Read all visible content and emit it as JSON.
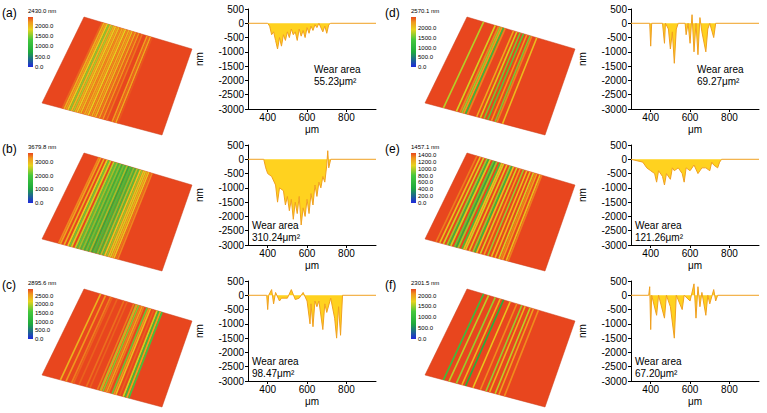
{
  "chart_data": [
    {
      "type": "line",
      "label": "(a)",
      "color": "#f0a020",
      "xlabel": "μm",
      "ylabel": "nm",
      "xlim": [
        300,
        950
      ],
      "xticks": [
        400,
        600,
        800
      ],
      "ylim": [
        -3000,
        500
      ],
      "yticks": [
        -3000,
        -2500,
        -2000,
        -1500,
        -1000,
        -500,
        0,
        500
      ],
      "grid": false,
      "annotations": [
        "Wear area",
        "55.23μm²"
      ],
      "colorbar": {
        "title": "2430.0 nm",
        "range": [
          0,
          2430
        ],
        "ticks": [
          {
            "value": 2000,
            "label": "2000.0"
          },
          {
            "value": 1500,
            "label": "1500.0"
          },
          {
            "value": 1000,
            "label": "1000.0"
          },
          {
            "value": 500,
            "label": "500.0"
          },
          {
            "value": 0,
            "label": "0.0"
          }
        ]
      },
      "x": [
        300,
        400,
        410,
        420,
        430,
        440,
        450,
        460,
        470,
        480,
        490,
        500,
        510,
        520,
        530,
        540,
        550,
        560,
        570,
        580,
        590,
        600,
        610,
        620,
        630,
        640,
        650,
        660,
        680,
        690,
        700,
        710,
        720,
        950
      ],
      "values": [
        0,
        0,
        -100,
        -400,
        -300,
        -600,
        -900,
        -500,
        -800,
        -400,
        -600,
        -300,
        -500,
        -200,
        -400,
        -300,
        -600,
        -200,
        -450,
        -250,
        -500,
        -150,
        -350,
        -100,
        -250,
        -50,
        -150,
        0,
        -300,
        -100,
        -350,
        -50,
        0,
        0
      ]
    },
    {
      "type": "line",
      "label": "(b)",
      "color": "#f0a020",
      "xlabel": "μm",
      "ylabel": "nm",
      "xlim": [
        300,
        950
      ],
      "xticks": [
        400,
        600,
        800
      ],
      "ylim": [
        -3000,
        500
      ],
      "yticks": [
        -3000,
        -2500,
        -2000,
        -1500,
        -1000,
        -500,
        0,
        500
      ],
      "grid": false,
      "annotations": [
        "Wear area",
        "310.24μm²"
      ],
      "colorbar": {
        "title": "3679.8 nm",
        "range": [
          0,
          3679.8
        ],
        "ticks": [
          {
            "value": 3000,
            "label": "3000.0"
          },
          {
            "value": 2000,
            "label": "2000.0"
          },
          {
            "value": 1000,
            "label": "1000.0"
          },
          {
            "value": 0,
            "label": "0.0"
          }
        ]
      },
      "x": [
        300,
        380,
        390,
        400,
        420,
        440,
        450,
        460,
        480,
        490,
        500,
        510,
        520,
        530,
        540,
        550,
        560,
        570,
        580,
        590,
        600,
        610,
        620,
        630,
        640,
        650,
        660,
        670,
        680,
        690,
        700,
        705,
        710,
        720,
        950
      ],
      "values": [
        0,
        0,
        -300,
        -500,
        -600,
        -900,
        -1500,
        -1000,
        -1100,
        -1600,
        -1300,
        -1800,
        -1400,
        -2100,
        -1500,
        -1900,
        -1300,
        -2300,
        -1700,
        -2000,
        -1400,
        -1900,
        -1200,
        -1600,
        -900,
        -1300,
        -800,
        -1000,
        -600,
        -800,
        -200,
        300,
        -300,
        0,
        0
      ]
    },
    {
      "type": "line",
      "label": "(c)",
      "color": "#f0a020",
      "xlabel": "μm",
      "ylabel": "nm",
      "xlim": [
        300,
        950
      ],
      "xticks": [
        400,
        600,
        800
      ],
      "ylim": [
        -3000,
        500
      ],
      "yticks": [
        -3000,
        -2500,
        -2000,
        -1500,
        -1000,
        -500,
        0,
        500
      ],
      "grid": false,
      "annotations": [
        "Wear area",
        "98.47μm²"
      ],
      "colorbar": {
        "title": "2895.6 nm",
        "range": [
          0,
          2895.6
        ],
        "ticks": [
          {
            "value": 2500,
            "label": "2500.0"
          },
          {
            "value": 2000,
            "label": "2000.0"
          },
          {
            "value": 1500,
            "label": "1500.0"
          },
          {
            "value": 1000,
            "label": "1000.0"
          },
          {
            "value": 500,
            "label": "500.0"
          },
          {
            "value": 0,
            "label": "0.0"
          }
        ]
      },
      "x": [
        300,
        395,
        400,
        405,
        420,
        430,
        440,
        460,
        470,
        500,
        520,
        540,
        560,
        580,
        600,
        615,
        620,
        630,
        640,
        650,
        660,
        680,
        690,
        700,
        720,
        740,
        750,
        760,
        770,
        780,
        950
      ],
      "values": [
        0,
        0,
        -500,
        0,
        200,
        -300,
        100,
        -200,
        -100,
        -100,
        200,
        -150,
        -100,
        100,
        -200,
        -1000,
        -300,
        -1100,
        -200,
        -400,
        -200,
        -1200,
        -300,
        -600,
        -100,
        -800,
        -1500,
        -400,
        -1400,
        0,
        0
      ]
    },
    {
      "type": "line",
      "label": "(d)",
      "color": "#f0a020",
      "xlabel": "μm",
      "ylabel": "nm",
      "xlim": [
        300,
        950
      ],
      "xticks": [
        400,
        600,
        800
      ],
      "ylim": [
        -3000,
        500
      ],
      "yticks": [
        -3000,
        -2500,
        -2000,
        -1500,
        -1000,
        -500,
        0,
        500
      ],
      "grid": false,
      "annotations": [
        "Wear area",
        "69.27μm²"
      ],
      "colorbar": {
        "title": "2570.1 nm",
        "range": [
          0,
          2570.1
        ],
        "ticks": [
          {
            "value": 2000,
            "label": "2000.0"
          },
          {
            "value": 1500,
            "label": "1500.0"
          },
          {
            "value": 1000,
            "label": "1000.0"
          },
          {
            "value": 500,
            "label": "500.0"
          },
          {
            "value": 0,
            "label": "0.0"
          }
        ]
      },
      "x": [
        300,
        395,
        400,
        405,
        460,
        470,
        475,
        490,
        500,
        510,
        520,
        530,
        540,
        575,
        580,
        590,
        600,
        610,
        620,
        630,
        640,
        650,
        660,
        680,
        690,
        700,
        720,
        730,
        950
      ],
      "values": [
        0,
        0,
        -800,
        0,
        0,
        -700,
        0,
        -200,
        -900,
        -300,
        -1400,
        -200,
        0,
        0,
        -400,
        0,
        -700,
        300,
        -1000,
        0,
        -1100,
        200,
        -300,
        -1000,
        -200,
        0,
        -500,
        0,
        0
      ]
    },
    {
      "type": "line",
      "label": "(e)",
      "color": "#f0a020",
      "xlabel": "μm",
      "ylabel": "nm",
      "xlim": [
        300,
        950
      ],
      "xticks": [
        400,
        600,
        800
      ],
      "ylim": [
        -3000,
        500
      ],
      "yticks": [
        -3000,
        -2500,
        -2000,
        -1500,
        -1000,
        -500,
        0,
        500
      ],
      "grid": false,
      "annotations": [
        "Wear area",
        "121.26μm²"
      ],
      "colorbar": {
        "title": "1457.1 nm",
        "range": [
          0,
          1457.1
        ],
        "ticks": [
          {
            "value": 1400,
            "label": "1400.0"
          },
          {
            "value": 1200,
            "label": "1200.0"
          },
          {
            "value": 1000,
            "label": "1000.0"
          },
          {
            "value": 800,
            "label": "800.0"
          },
          {
            "value": 600,
            "label": "600.0"
          },
          {
            "value": 400,
            "label": "400.0"
          },
          {
            "value": 200,
            "label": "200.0"
          },
          {
            "value": 0,
            "label": "0.0"
          }
        ]
      },
      "x": [
        300,
        360,
        380,
        400,
        420,
        430,
        440,
        460,
        470,
        480,
        500,
        510,
        520,
        540,
        560,
        570,
        580,
        600,
        620,
        640,
        660,
        680,
        700,
        710,
        720,
        740,
        750,
        760,
        950
      ],
      "values": [
        0,
        -100,
        -300,
        -400,
        -500,
        -800,
        -400,
        -600,
        -900,
        -500,
        -700,
        -300,
        -400,
        -300,
        -500,
        -800,
        -300,
        -400,
        -200,
        -500,
        -300,
        -300,
        -400,
        -100,
        -200,
        -300,
        -100,
        0,
        0
      ]
    },
    {
      "type": "line",
      "label": "(f)",
      "color": "#f0a020",
      "xlabel": "μm",
      "ylabel": "nm",
      "xlim": [
        300,
        950
      ],
      "xticks": [
        400,
        600,
        800
      ],
      "ylim": [
        -3000,
        500
      ],
      "yticks": [
        -3000,
        -2500,
        -2000,
        -1500,
        -1000,
        -500,
        0,
        500
      ],
      "grid": false,
      "annotations": [
        "Wear area",
        "67.20μm²"
      ],
      "colorbar": {
        "title": "2301.5 nm",
        "range": [
          0,
          2301.5
        ],
        "ticks": [
          {
            "value": 2000,
            "label": "2000.0"
          },
          {
            "value": 1500,
            "label": "1500.0"
          },
          {
            "value": 1000,
            "label": "1000.0"
          },
          {
            "value": 500,
            "label": "500.0"
          },
          {
            "value": 0,
            "label": "0.0"
          }
        ]
      },
      "x": [
        300,
        390,
        395,
        400,
        405,
        430,
        440,
        470,
        480,
        500,
        520,
        530,
        560,
        570,
        600,
        620,
        630,
        640,
        650,
        660,
        680,
        690,
        700,
        720,
        730,
        740,
        950
      ],
      "values": [
        0,
        0,
        300,
        -1200,
        0,
        -700,
        0,
        -800,
        0,
        -400,
        -1500,
        0,
        -500,
        0,
        -200,
        400,
        -800,
        300,
        -400,
        100,
        -700,
        0,
        -300,
        200,
        -200,
        0,
        0
      ]
    }
  ]
}
